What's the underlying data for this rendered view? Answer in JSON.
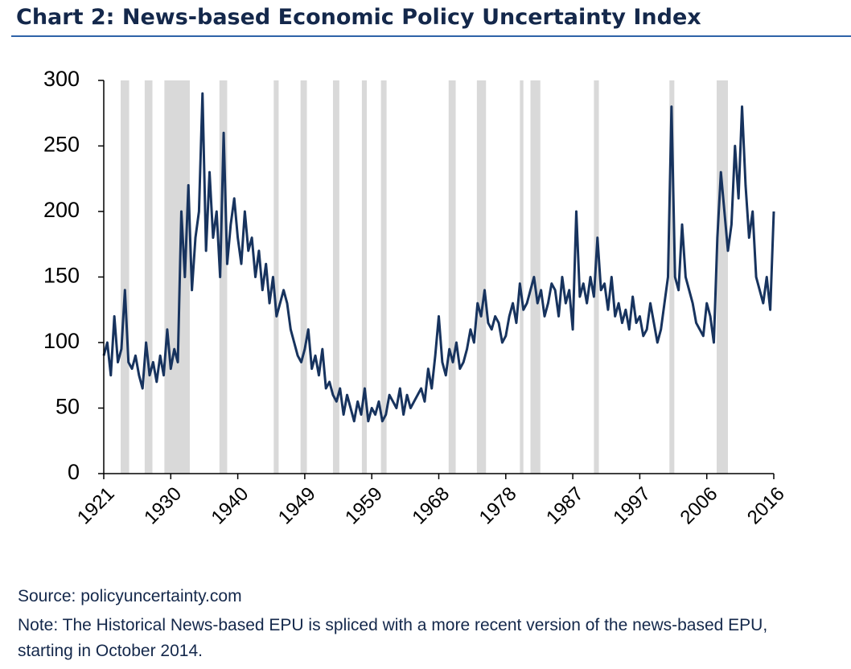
{
  "chart_data": {
    "type": "line",
    "title": "Chart 2: News-based Economic Policy Uncertainty Index",
    "source": "Source: policyuncertainty.com",
    "note": [
      "Note: The Historical News-based EPU is spliced with a more recent version of the news-based EPU,",
      "starting in October 2014."
    ],
    "xlim": [
      1921,
      2016
    ],
    "xticks": [
      1921,
      {
        "value": 1930.5,
        "label": "1930"
      },
      1940,
      {
        "value": 1949.5,
        "label": "1949"
      },
      1959,
      {
        "value": 1968.5,
        "label": "1968"
      },
      1978,
      {
        "value": 1987.5,
        "label": "1987"
      },
      1997,
      {
        "value": 2006.5,
        "label": "2006"
      },
      2016
    ],
    "ylim": [
      0,
      300
    ],
    "yticks": [
      0,
      50,
      100,
      150,
      200,
      250,
      300
    ],
    "shaded_periods": [
      [
        1923.4,
        1924.6
      ],
      [
        1926.8,
        1927.9
      ],
      [
        1929.6,
        1933.2
      ],
      [
        1937.4,
        1938.5
      ],
      [
        1945.1,
        1945.8
      ],
      [
        1948.9,
        1949.8
      ],
      [
        1953.5,
        1954.4
      ],
      [
        1957.6,
        1958.3
      ],
      [
        1960.3,
        1961.1
      ],
      [
        1969.9,
        1970.9
      ],
      [
        1973.9,
        1975.2
      ],
      [
        1980.0,
        1980.5
      ],
      [
        1981.5,
        1982.9
      ],
      [
        1990.5,
        1991.2
      ],
      [
        2001.2,
        2001.9
      ],
      [
        2007.9,
        2009.5
      ]
    ],
    "shade_color": "#d9d9d9",
    "x": [
      1921,
      1921.5,
      1922,
      1922.5,
      1923,
      1923.5,
      1924,
      1924.5,
      1925,
      1925.5,
      1926,
      1926.5,
      1927,
      1927.5,
      1928,
      1928.5,
      1929,
      1929.5,
      1930,
      1930.5,
      1931,
      1931.5,
      1932,
      1932.5,
      1933,
      1933.5,
      1934,
      1934.5,
      1935,
      1935.5,
      1936,
      1936.5,
      1937,
      1937.5,
      1938,
      1938.5,
      1939,
      1939.5,
      1940,
      1940.5,
      1941,
      1941.5,
      1942,
      1942.5,
      1943,
      1943.5,
      1944,
      1944.5,
      1945,
      1945.5,
      1946,
      1946.5,
      1947,
      1947.5,
      1948,
      1948.5,
      1949,
      1949.5,
      1950,
      1950.5,
      1951,
      1951.5,
      1952,
      1952.5,
      1953,
      1953.5,
      1954,
      1954.5,
      1955,
      1955.5,
      1956,
      1956.5,
      1957,
      1957.5,
      1958,
      1958.5,
      1959,
      1959.5,
      1960,
      1960.5,
      1961,
      1961.5,
      1962,
      1962.5,
      1963,
      1963.5,
      1964,
      1964.5,
      1965,
      1965.5,
      1966,
      1966.5,
      1967,
      1967.5,
      1968,
      1968.5,
      1969,
      1969.5,
      1970,
      1970.5,
      1971,
      1971.5,
      1972,
      1972.5,
      1973,
      1973.5,
      1974,
      1974.5,
      1975,
      1975.5,
      1976,
      1976.5,
      1977,
      1977.5,
      1978,
      1978.5,
      1979,
      1979.5,
      1980,
      1980.5,
      1981,
      1981.5,
      1982,
      1982.5,
      1983,
      1983.5,
      1984,
      1984.5,
      1985,
      1985.5,
      1986,
      1986.5,
      1987,
      1987.5,
      1988,
      1988.5,
      1989,
      1989.5,
      1990,
      1990.5,
      1991,
      1991.5,
      1992,
      1992.5,
      1993,
      1993.5,
      1994,
      1994.5,
      1995,
      1995.5,
      1996,
      1996.5,
      1997,
      1997.5,
      1998,
      1998.5,
      1999,
      1999.5,
      2000,
      2000.5,
      2001,
      2001.5,
      2002,
      2002.5,
      2003,
      2003.5,
      2004,
      2004.5,
      2005,
      2005.5,
      2006,
      2006.5,
      2007,
      2007.5,
      2008,
      2008.5,
      2009,
      2009.5,
      2010,
      2010.5,
      2011,
      2011.5,
      2012,
      2012.5,
      2013,
      2013.5,
      2014,
      2014.5,
      2015,
      2015.5,
      2016
    ],
    "series": [
      {
        "color": "#17335e",
        "values": [
          90,
          100,
          75,
          120,
          85,
          95,
          140,
          85,
          80,
          90,
          75,
          65,
          100,
          75,
          85,
          70,
          90,
          75,
          110,
          80,
          95,
          85,
          200,
          150,
          220,
          140,
          180,
          200,
          290,
          170,
          230,
          180,
          200,
          150,
          260,
          160,
          190,
          210,
          180,
          160,
          200,
          170,
          180,
          150,
          170,
          140,
          160,
          130,
          150,
          120,
          130,
          140,
          130,
          110,
          100,
          90,
          85,
          95,
          110,
          80,
          90,
          75,
          95,
          65,
          70,
          60,
          55,
          65,
          45,
          60,
          50,
          40,
          55,
          45,
          65,
          40,
          50,
          45,
          55,
          40,
          45,
          60,
          55,
          50,
          65,
          45,
          60,
          50,
          55,
          60,
          65,
          55,
          80,
          65,
          90,
          120,
          85,
          75,
          95,
          85,
          100,
          80,
          85,
          95,
          110,
          100,
          130,
          120,
          140,
          115,
          110,
          120,
          115,
          100,
          105,
          120,
          130,
          115,
          145,
          125,
          130,
          140,
          150,
          130,
          140,
          120,
          130,
          145,
          140,
          120,
          150,
          130,
          140,
          110,
          200,
          135,
          145,
          130,
          150,
          135,
          180,
          140,
          145,
          125,
          150,
          120,
          130,
          115,
          125,
          110,
          135,
          115,
          120,
          105,
          110,
          130,
          115,
          100,
          110,
          130,
          150,
          280,
          150,
          140,
          190,
          150,
          140,
          130,
          115,
          110,
          105,
          130,
          120,
          100,
          180,
          230,
          200,
          170,
          190,
          250,
          210,
          280,
          220,
          180,
          200,
          150,
          140,
          130,
          150,
          125,
          200
        ]
      }
    ]
  }
}
